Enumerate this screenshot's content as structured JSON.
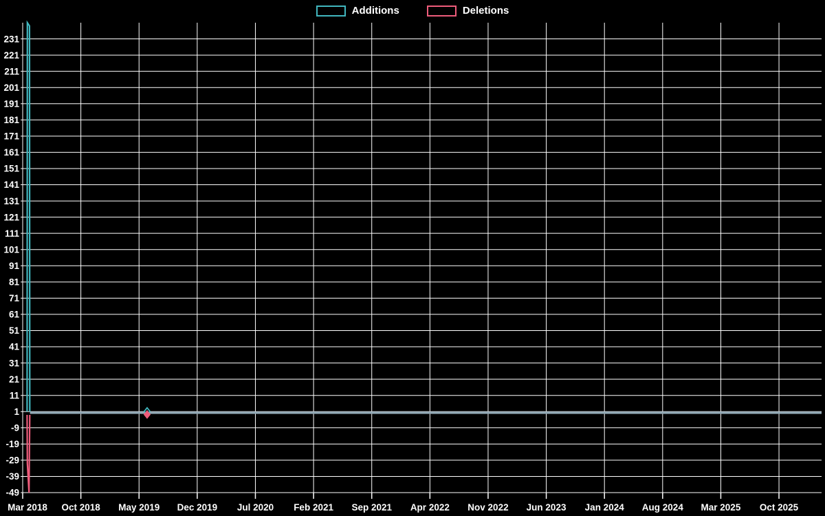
{
  "chart_data": {
    "type": "line",
    "title": "",
    "legend": [
      "Additions",
      "Deletions"
    ],
    "legend_position": "top-center",
    "background": "#000000",
    "grid": {
      "visible": true,
      "color": "#ffffff"
    },
    "text_color": "#ffffff",
    "y_axis": {
      "min": -49,
      "max": 241,
      "interval": 10
    },
    "y_ticks": [
      231,
      221,
      211,
      201,
      191,
      181,
      171,
      161,
      151,
      141,
      131,
      121,
      111,
      101,
      91,
      81,
      71,
      61,
      51,
      41,
      31,
      21,
      11,
      1,
      -9,
      -19,
      -29,
      -39,
      -49
    ],
    "x_ticks": [
      "Mar 2018",
      "Oct 2018",
      "May 2019",
      "Dec 2019",
      "Jul 2020",
      "Feb 2021",
      "Sep 2021",
      "Apr 2022",
      "Nov 2022",
      "Jun 2023",
      "Jan 2024",
      "Aug 2024",
      "Mar 2025",
      "Oct 2025"
    ],
    "x_tick_interval_months": 7,
    "x_range_weeks": 418,
    "marker_symbol": "diamond",
    "series": [
      {
        "name": "Additions",
        "color": "#41b7bf",
        "summary": "Spike of ~241 additions in mid-March 2018, then ~1 per week through Oct 2025",
        "points_week_value": [
          [
            2.3,
            1
          ],
          [
            2.45,
            241
          ],
          [
            3.55,
            239
          ],
          [
            3.7,
            1
          ]
        ],
        "flat_value": 1,
        "marker": {
          "week": 65.1,
          "approx_date": "Jun 2019",
          "value": 1,
          "filled": false
        }
      },
      {
        "name": "Deletions",
        "color": "#ee5c7b",
        "summary": "Spike of ~-49 deletions in mid-March 2018, then ~-1 per week through Oct 2025",
        "points_week_value": [
          [
            2.3,
            -1
          ],
          [
            2.45,
            -31
          ],
          [
            3.3,
            -49
          ],
          [
            3.7,
            -1
          ]
        ],
        "flat_value": -1,
        "marker": {
          "week": 65.1,
          "approx_date": "Jun 2019",
          "value": -1,
          "filled": true
        }
      }
    ],
    "overlap_flat_line": {
      "color": "#8fa6b3",
      "from_week": 3.8,
      "value_center": 0.3,
      "note": "Additions (+1) and Deletions (-1) lines overlap into one gray band across the chart"
    }
  }
}
